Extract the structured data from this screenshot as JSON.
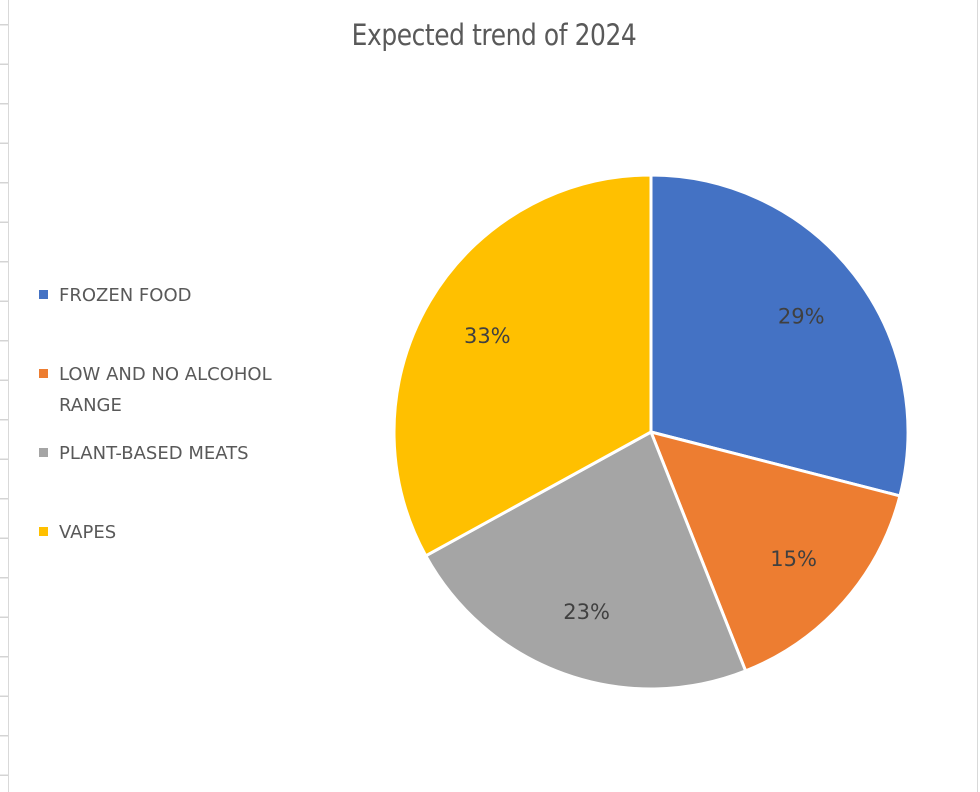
{
  "chart_data": {
    "type": "pie",
    "title": "Expected trend of 2024",
    "categories": [
      "FROZEN FOOD",
      "LOW AND NO ALCOHOL RANGE",
      "PLANT-BASED MEATS",
      "VAPES"
    ],
    "values": [
      29,
      15,
      23,
      33
    ],
    "data_labels": [
      "29%",
      "15%",
      "23%",
      "33%"
    ],
    "colors": [
      "#4472C4",
      "#ED7D31",
      "#A5A5A5",
      "#FFC000"
    ],
    "legend_position": "left",
    "start_angle_deg": 0,
    "direction": "clockwise"
  },
  "legend": {
    "items": [
      {
        "label": "FROZEN FOOD",
        "color": "#4472C4"
      },
      {
        "label": "LOW AND NO ALCOHOL RANGE",
        "color": "#ED7D31"
      },
      {
        "label": "PLANT-BASED MEATS",
        "color": "#A5A5A5"
      },
      {
        "label": "VAPES",
        "color": "#FFC000"
      }
    ]
  }
}
